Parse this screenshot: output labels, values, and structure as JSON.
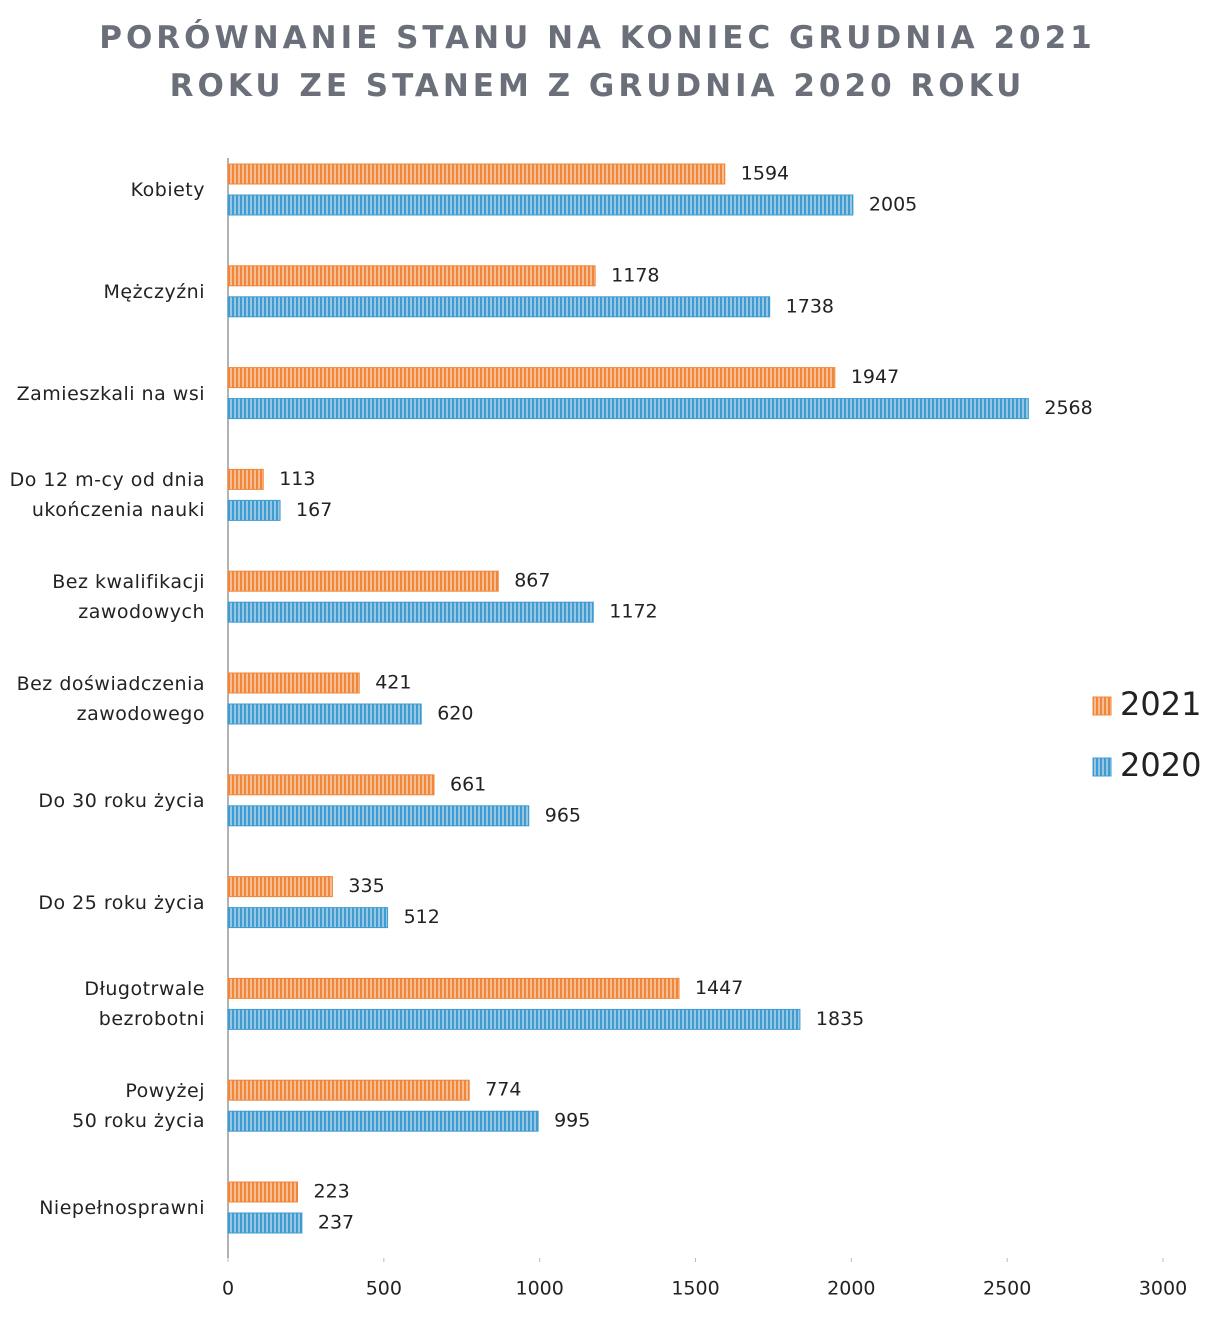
{
  "chart_data": {
    "type": "bar",
    "orientation": "horizontal",
    "title": "PORÓWNANIE STANU NA KONIEC GRUDNIA 2021\nROKU ZE STANEM Z GRUDNIA 2020 ROKU",
    "categories": [
      "Kobiety",
      "Mężczyźni",
      "Zamieszkali na wsi",
      "Do 12 m-cy od dnia\nukończenia nauki",
      "Bez kwalifikacji\nzawodowych",
      "Bez doświadczenia\nzawodowego",
      "Do 30 roku życia",
      "Do 25 roku życia",
      "Długotrwale\nbezrobotni",
      "Powyżej\n50 roku życia",
      "Niepełnosprawni"
    ],
    "series": [
      {
        "name": "2021",
        "color": "#f0863a",
        "values": [
          1594,
          1178,
          1947,
          113,
          867,
          421,
          661,
          335,
          1447,
          774,
          223
        ]
      },
      {
        "name": "2020",
        "color": "#3f9bd0",
        "values": [
          2005,
          1738,
          2568,
          167,
          1172,
          620,
          965,
          512,
          1835,
          995,
          237
        ]
      }
    ],
    "xlim": [
      0,
      3000
    ],
    "xticks": [
      0,
      500,
      1000,
      1500,
      2000,
      2500,
      3000
    ],
    "grid": false,
    "legend": "right"
  }
}
